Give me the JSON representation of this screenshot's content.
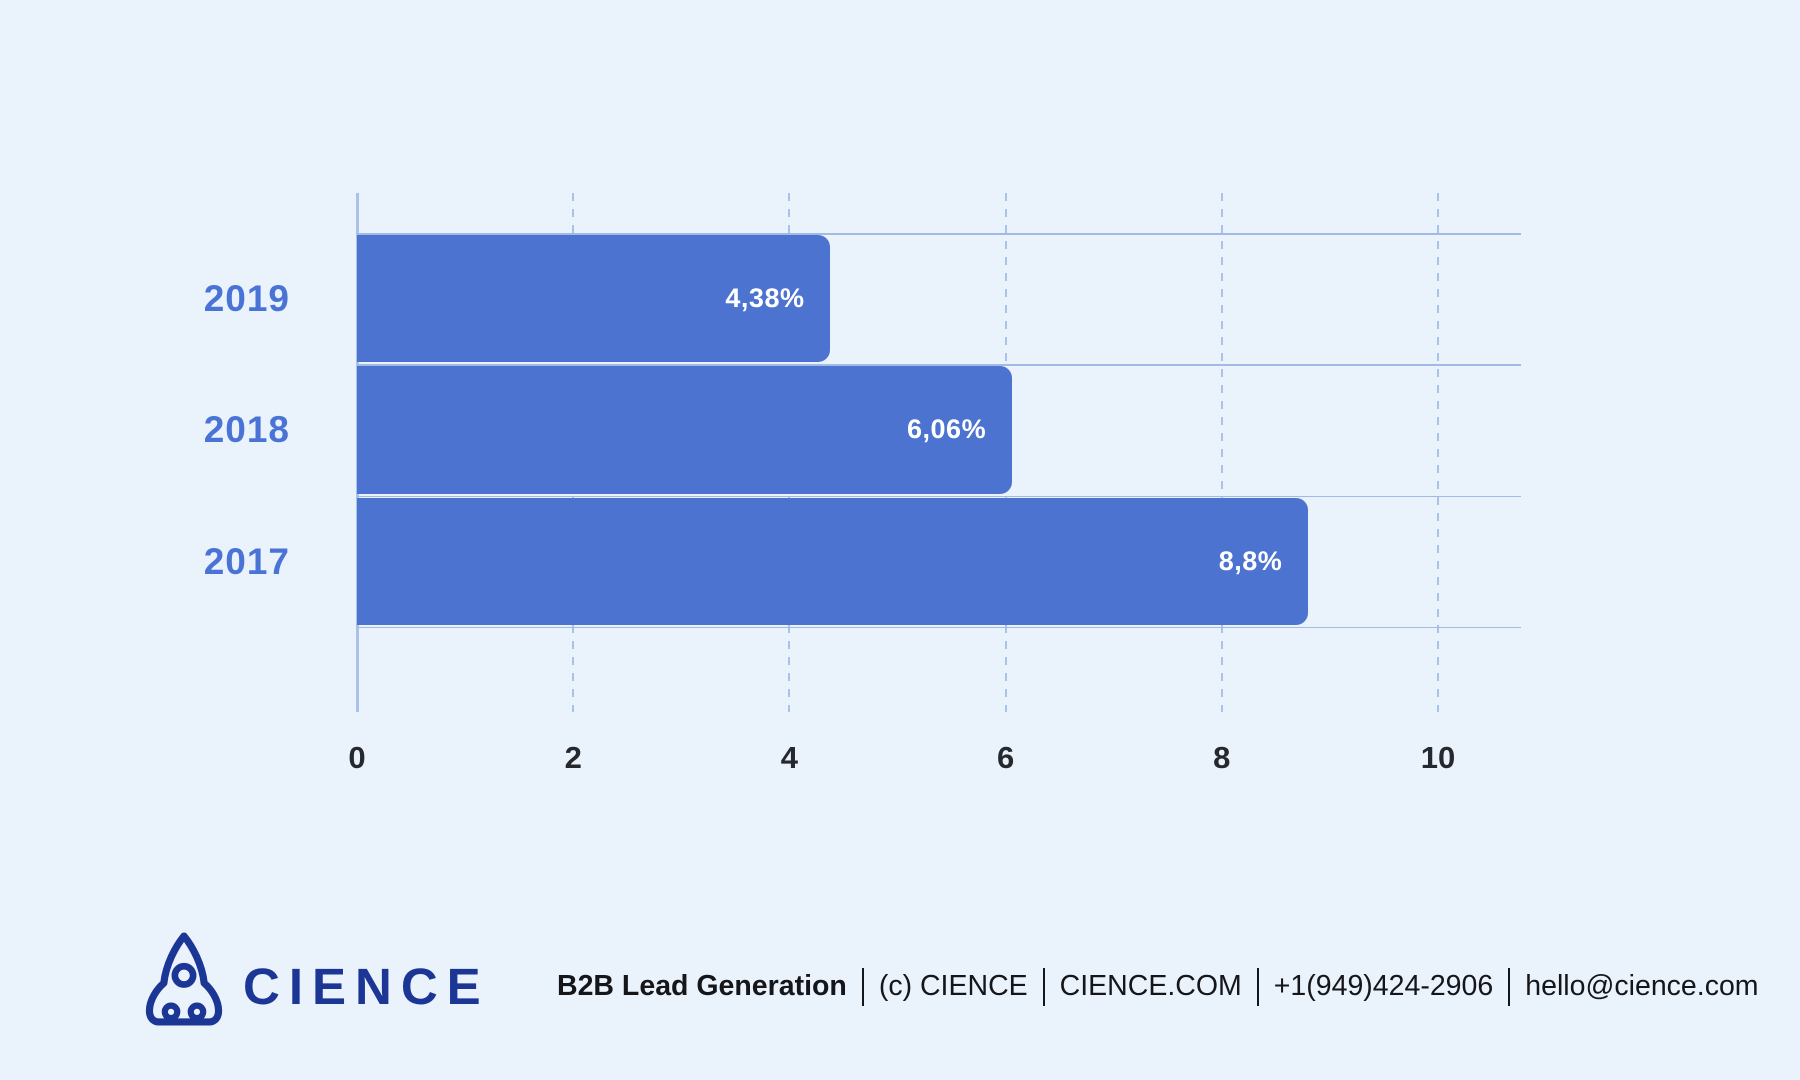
{
  "background_color": "#eaf2fc",
  "chart_data": {
    "type": "bar",
    "orientation": "horizontal",
    "title": "",
    "xlabel": "",
    "ylabel": "",
    "categories": [
      "2019",
      "2018",
      "2017"
    ],
    "values": [
      4.38,
      6.06,
      8.8
    ],
    "value_labels": [
      "4,38%",
      "6,06%",
      "8,8%"
    ],
    "x_ticks": [
      "0",
      "2",
      "4",
      "6",
      "8",
      "10"
    ],
    "x_tick_values": [
      0,
      2,
      4,
      6,
      8,
      10
    ],
    "xlim": [
      0,
      10.77
    ],
    "grid": "vertical-dashed",
    "legend_position": "none",
    "colors": {
      "bar": "#4c73d0",
      "bar_label": "#ffffff",
      "category_label": "#4a73d6",
      "tick_label": "#25282d",
      "axis_line": "#a9c2ea",
      "grid_line": "#a9c2ea",
      "row_line": "#a2bbe4"
    }
  },
  "footer": {
    "logo_icon": "rocket-icon",
    "brand": "CIENCE",
    "brand_color": "#1c3695",
    "text_color": "#141619",
    "separator": "|",
    "segments": [
      {
        "text": "B2B Lead Generation",
        "bold": true
      },
      {
        "text": "(c) CIENCE",
        "bold": false
      },
      {
        "text": "CIENCE.COM",
        "bold": false
      },
      {
        "text": "+1(949)424-2906",
        "bold": false
      },
      {
        "text": "hello@cience.com",
        "bold": false
      }
    ]
  }
}
